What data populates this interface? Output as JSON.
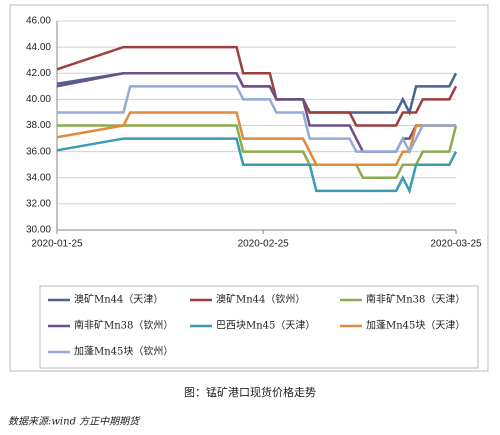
{
  "chart_data": {
    "type": "line",
    "caption": "图：锰矿港口现货价格走势",
    "source": "数据来源:wind 方正中期期货",
    "x": [
      "2020-01-25",
      "2020-02-04",
      "2020-02-05",
      "2020-02-21",
      "2020-02-22",
      "2020-02-26",
      "2020-02-27",
      "2020-03-02",
      "2020-03-03",
      "2020-03-04",
      "2020-03-09",
      "2020-03-10",
      "2020-03-11",
      "2020-03-16",
      "2020-03-17",
      "2020-03-18",
      "2020-03-19",
      "2020-03-20",
      "2020-03-24",
      "2020-03-25"
    ],
    "xlim": [
      "2020-01-25",
      "2020-03-25"
    ],
    "xticks": [
      "2020-01-25",
      "2020-02-25",
      "2020-03-25"
    ],
    "ylim": [
      30,
      46
    ],
    "yticks": [
      {
        "value": 30,
        "label": "30.00"
      },
      {
        "value": 32,
        "label": "32.00"
      },
      {
        "value": 34,
        "label": "34.00"
      },
      {
        "value": 36,
        "label": "36.00"
      },
      {
        "value": 38,
        "label": "38.00"
      },
      {
        "value": 40,
        "label": "40.00"
      },
      {
        "value": 42,
        "label": "42.00"
      },
      {
        "value": 44,
        "label": "44.00"
      },
      {
        "value": 46,
        "label": "46.00"
      }
    ],
    "grid": true,
    "legend": "bottom",
    "series": [
      {
        "name": "澳矿Mn44（天津）",
        "color": "#4a6296",
        "values": [
          41.2,
          42,
          42,
          42,
          41,
          41,
          40,
          40,
          39,
          39,
          39,
          39,
          39,
          39,
          40,
          39,
          41,
          41,
          41,
          42
        ]
      },
      {
        "name": "澳矿Mn44（钦州）",
        "color": "#9d3f3c",
        "values": [
          42.3,
          44,
          44,
          44,
          42,
          42,
          40,
          40,
          39,
          39,
          39,
          38,
          38,
          38,
          39,
          39,
          39,
          40,
          40,
          41
        ]
      },
      {
        "name": "南非矿Mn38（天津）",
        "color": "#8cab4f",
        "values": [
          38,
          38,
          38,
          38,
          36,
          36,
          36,
          36,
          35,
          35,
          35,
          35,
          34,
          34,
          35,
          35,
          35,
          36,
          36,
          38
        ]
      },
      {
        "name": "南非矿Mn38（钦州）",
        "color": "#6c5189",
        "values": [
          41,
          42,
          42,
          42,
          41,
          41,
          40,
          40,
          38,
          38,
          38,
          37,
          36,
          36,
          37,
          37,
          38,
          38,
          38,
          38
        ]
      },
      {
        "name": "巴西块Mn45（天津）",
        "color": "#3b9bb1",
        "values": [
          36.1,
          37,
          37,
          37,
          35,
          35,
          35,
          35,
          35,
          33,
          33,
          33,
          33,
          33,
          34,
          33,
          35,
          35,
          35,
          36
        ]
      },
      {
        "name": "加蓬Mn45块（天津）",
        "color": "#e2893b",
        "values": [
          37.1,
          38,
          39,
          39,
          37,
          37,
          37,
          37,
          36,
          35,
          35,
          35,
          35,
          35,
          36,
          36,
          38,
          38,
          38,
          38
        ]
      },
      {
        "name": "加蓬Mn45块（钦州）",
        "color": "#93abd6",
        "values": [
          39,
          39,
          41,
          41,
          40,
          40,
          39,
          39,
          37,
          37,
          37,
          36,
          36,
          36,
          37,
          36,
          37,
          38,
          38,
          38
        ]
      }
    ]
  }
}
